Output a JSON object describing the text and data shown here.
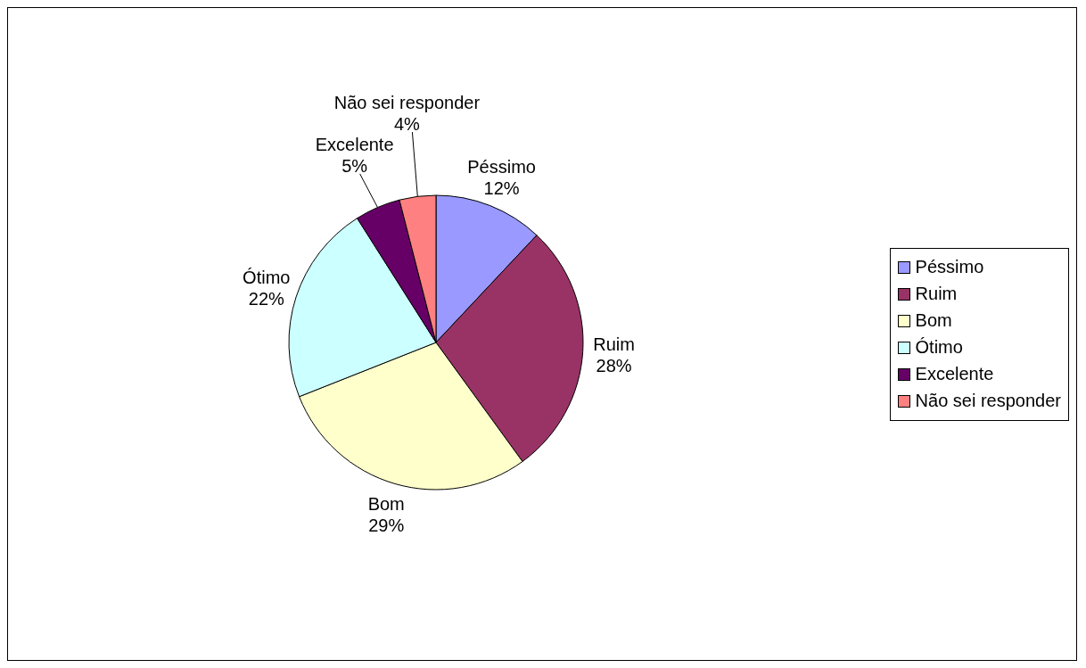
{
  "chart_data": {
    "type": "pie",
    "categories": [
      "Péssimo",
      "Ruim",
      "Bom",
      "Ótimo",
      "Excelente",
      "Não sei responder"
    ],
    "values": [
      12,
      28,
      29,
      22,
      5,
      4
    ],
    "colors": [
      "#9999ff",
      "#993366",
      "#ffffcc",
      "#ccffff",
      "#660066",
      "#ff8080"
    ],
    "value_labels": [
      "12%",
      "28%",
      "29%",
      "22%",
      "5%",
      "4%"
    ],
    "legend": "right"
  }
}
